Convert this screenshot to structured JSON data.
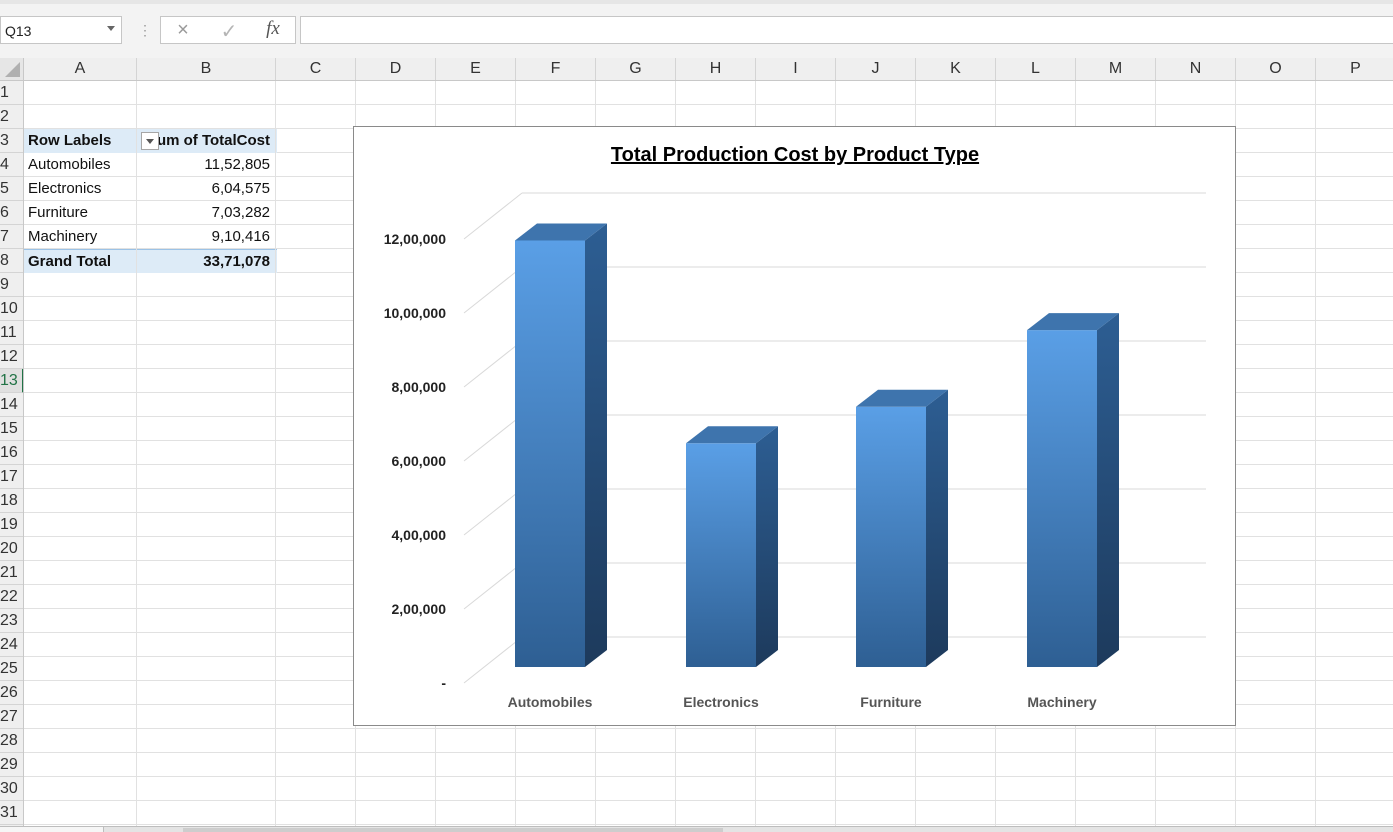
{
  "formula_bar": {
    "name_box": "Q13",
    "cancel_icon": "×",
    "enter_icon": "✓",
    "fx_label": "fx",
    "formula": ""
  },
  "columns": [
    "A",
    "B",
    "C",
    "D",
    "E",
    "F",
    "G",
    "H",
    "I",
    "J",
    "K",
    "L",
    "M",
    "N",
    "O",
    "P"
  ],
  "rows": [
    "1",
    "2",
    "3",
    "4",
    "5",
    "6",
    "7",
    "8",
    "9",
    "10",
    "11",
    "12",
    "13",
    "14",
    "15",
    "16",
    "17",
    "18",
    "19",
    "20",
    "21",
    "22",
    "23",
    "24",
    "25",
    "26",
    "27",
    "28",
    "29",
    "30",
    "31"
  ],
  "active_row": "13",
  "pivot": {
    "header_label": "Row Labels",
    "header_value": "Sum of TotalCost",
    "items": [
      {
        "label": "Automobiles",
        "value": "11,52,805"
      },
      {
        "label": "Electronics",
        "value": "6,04,575"
      },
      {
        "label": "Furniture",
        "value": "7,03,282"
      },
      {
        "label": "Machinery",
        "value": "9,10,416"
      }
    ],
    "total_label": "Grand Total",
    "total_value": "33,71,078"
  },
  "chart_data": {
    "type": "bar",
    "title": "Total Production Cost by Product Type",
    "categories": [
      "Automobiles",
      "Electronics",
      "Furniture",
      "Machinery"
    ],
    "values": [
      1152805,
      604575,
      703282,
      910416
    ],
    "ylim": [
      0,
      1200000
    ],
    "yticks": [
      0,
      200000,
      400000,
      600000,
      800000,
      1000000,
      1200000
    ],
    "ytick_labels": [
      "-",
      "2,00,000",
      "4,00,000",
      "6,00,000",
      "8,00,000",
      "10,00,000",
      "12,00,000"
    ],
    "grid": true,
    "legend": "none",
    "colors": {
      "front_top": "#5a9fe6",
      "front_bottom": "#2e5f93",
      "side": "#254a75",
      "top": "#3e74ad"
    }
  }
}
